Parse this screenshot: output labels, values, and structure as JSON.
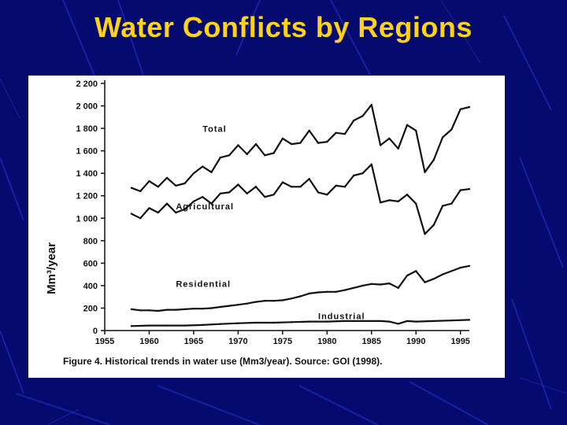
{
  "slide": {
    "title": "Water Conflicts by Regions"
  },
  "colors": {
    "background": "#050a6e",
    "title": "#ffd21a",
    "panel": "#ffffff",
    "line": "#111111"
  },
  "chart_data": {
    "type": "line",
    "caption": "Figure 4. Historical trends in water use (Mm3/year). Source: GOI (1998).",
    "ylabel": "Mm³/year",
    "xlabel": "",
    "xlim": [
      1955,
      1996
    ],
    "ylim": [
      0,
      2200
    ],
    "x_ticks": [
      1955,
      1960,
      1965,
      1970,
      1975,
      1980,
      1985,
      1990,
      1995
    ],
    "y_ticks": [
      0,
      200,
      400,
      600,
      800,
      1000,
      1200,
      1400,
      1600,
      1800,
      2000,
      2200
    ],
    "y_tick_labels": [
      "0",
      "200",
      "400",
      "600",
      "800",
      "1 000",
      "1 200",
      "1 400",
      "1 600",
      "1 800",
      "2 000",
      "2 200"
    ],
    "grid": false,
    "series": [
      {
        "name": "Total",
        "label_at": [
          1966,
          1770
        ],
        "x": [
          1958,
          1959,
          1960,
          1961,
          1962,
          1963,
          1964,
          1965,
          1966,
          1967,
          1968,
          1969,
          1970,
          1971,
          1972,
          1973,
          1974,
          1975,
          1976,
          1977,
          1978,
          1979,
          1980,
          1981,
          1982,
          1983,
          1984,
          1985,
          1986,
          1987,
          1988,
          1989,
          1990,
          1991,
          1992,
          1993,
          1994,
          1995,
          1996
        ],
        "y": [
          1270,
          1240,
          1330,
          1280,
          1360,
          1290,
          1310,
          1400,
          1460,
          1410,
          1540,
          1560,
          1650,
          1570,
          1660,
          1560,
          1580,
          1710,
          1660,
          1670,
          1780,
          1670,
          1680,
          1760,
          1750,
          1870,
          1910,
          2010,
          1650,
          1710,
          1620,
          1830,
          1780,
          1410,
          1520,
          1720,
          1790,
          1970,
          1990
        ]
      },
      {
        "name": "Agricultural",
        "label_at": [
          1963,
          1080
        ],
        "x": [
          1958,
          1959,
          1960,
          1961,
          1962,
          1963,
          1964,
          1965,
          1966,
          1967,
          1968,
          1969,
          1970,
          1971,
          1972,
          1973,
          1974,
          1975,
          1976,
          1977,
          1978,
          1979,
          1980,
          1981,
          1982,
          1983,
          1984,
          1985,
          1986,
          1987,
          1988,
          1989,
          1990,
          1991,
          1992,
          1993,
          1994,
          1995,
          1996
        ],
        "y": [
          1040,
          1000,
          1090,
          1050,
          1130,
          1050,
          1080,
          1150,
          1190,
          1130,
          1220,
          1230,
          1300,
          1220,
          1280,
          1190,
          1210,
          1320,
          1280,
          1280,
          1350,
          1230,
          1210,
          1290,
          1280,
          1380,
          1400,
          1480,
          1140,
          1160,
          1150,
          1210,
          1130,
          860,
          940,
          1110,
          1130,
          1250,
          1260
        ]
      },
      {
        "name": "Residential",
        "label_at": [
          1963,
          390
        ],
        "x": [
          1958,
          1959,
          1960,
          1961,
          1962,
          1963,
          1964,
          1965,
          1966,
          1967,
          1968,
          1969,
          1970,
          1971,
          1972,
          1973,
          1974,
          1975,
          1976,
          1977,
          1978,
          1979,
          1980,
          1981,
          1982,
          1983,
          1984,
          1985,
          1986,
          1987,
          1988,
          1989,
          1990,
          1991,
          1992,
          1993,
          1994,
          1995,
          1996
        ],
        "y": [
          190,
          180,
          180,
          175,
          185,
          185,
          190,
          195,
          195,
          200,
          210,
          220,
          230,
          240,
          255,
          265,
          265,
          270,
          285,
          305,
          330,
          340,
          345,
          345,
          360,
          380,
          400,
          415,
          410,
          420,
          380,
          490,
          530,
          430,
          460,
          500,
          530,
          560,
          575
        ]
      },
      {
        "name": "Industrial",
        "label_at": [
          1979,
          100
        ],
        "x": [
          1958,
          1960,
          1962,
          1964,
          1966,
          1968,
          1970,
          1972,
          1974,
          1976,
          1978,
          1980,
          1982,
          1984,
          1986,
          1987,
          1988,
          1989,
          1990,
          1992,
          1994,
          1996
        ],
        "y": [
          40,
          45,
          45,
          45,
          50,
          58,
          65,
          70,
          70,
          75,
          80,
          80,
          85,
          85,
          85,
          80,
          60,
          85,
          80,
          85,
          90,
          95
        ]
      }
    ]
  }
}
